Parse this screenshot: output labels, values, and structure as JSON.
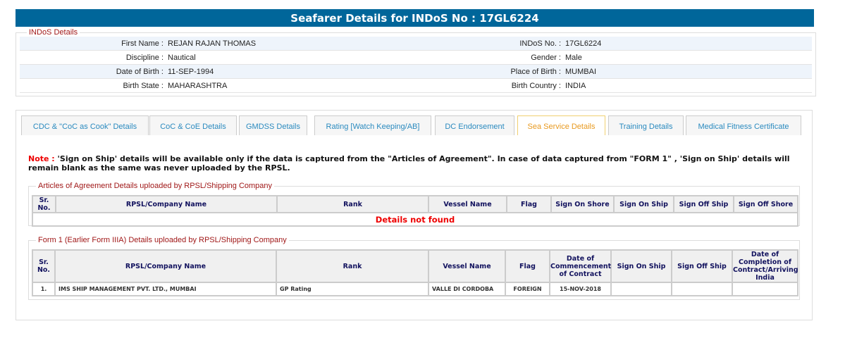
{
  "header": {
    "title": "Seafarer Details for INDoS No : 17GL6224"
  },
  "indos": {
    "legend": "INDoS Details",
    "rows": [
      {
        "l1": "First Name :",
        "v1": "REJAN RAJAN THOMAS",
        "l2": "INDoS No. :",
        "v2": "17GL6224"
      },
      {
        "l1": "Discipline :",
        "v1": "Nautical",
        "l2": "Gender :",
        "v2": "Male"
      },
      {
        "l1": "Date of Birth :",
        "v1": "11-SEP-1994",
        "l2": "Place of Birth :",
        "v2": "MUMBAI"
      },
      {
        "l1": "Birth State :",
        "v1": "MAHARASHTRA",
        "l2": "Birth Country :",
        "v2": "INDIA"
      }
    ]
  },
  "tabs": [
    "CDC & \"CoC as Cook\" Details",
    "CoC & CoE Details",
    "GMDSS Details",
    "Rating [Watch Keeping/AB]",
    "DC Endorsement",
    "Sea Service Details",
    "Training Details",
    "Medical Fitness Certificate"
  ],
  "active_tab": "Sea Service Details",
  "note": {
    "label": "Note :",
    "text": " 'Sign on Ship' details will be available only if the data is captured from the \"Articles of Agreement\". In case of data captured from \"FORM 1\" , 'Sign on Ship' details will remain blank as the same was never uploaded by the RPSL."
  },
  "articles": {
    "legend": "Articles of Agreement Details uploaded by RPSL/Shipping Company",
    "columns": [
      "Sr. No.",
      "RPSL/Company Name",
      "Rank",
      "Vessel Name",
      "Flag",
      "Sign On Shore",
      "Sign On Ship",
      "Sign Off Ship",
      "Sign Off Shore"
    ],
    "empty": "Details not found"
  },
  "form1": {
    "legend": "Form 1 (Earlier Form IIIA) Details uploaded by RPSL/Shipping Company",
    "columns": [
      "Sr. No.",
      "RPSL/Company Name",
      "Rank",
      "Vessel Name",
      "Flag",
      "Date of Commencement of Contract",
      "Sign On Ship",
      "Sign Off Ship",
      "Date of Completion of Contract/Arriving India"
    ],
    "rows": [
      [
        "1.",
        "IMS SHIP MANAGEMENT PVT. LTD., MUMBAI",
        "GP Rating",
        "VALLE DI CORDOBA",
        "FOREIGN",
        "15-NOV-2018",
        "",
        "",
        ""
      ]
    ]
  }
}
